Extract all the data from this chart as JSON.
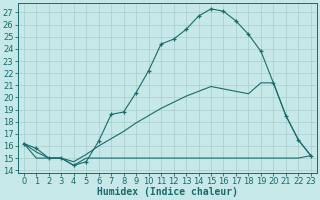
{
  "xlabel": "Humidex (Indice chaleur)",
  "xlim": [
    -0.5,
    23.5
  ],
  "ylim": [
    13.8,
    27.8
  ],
  "yticks": [
    14,
    15,
    16,
    17,
    18,
    19,
    20,
    21,
    22,
    23,
    24,
    25,
    26,
    27
  ],
  "xticks": [
    0,
    1,
    2,
    3,
    4,
    5,
    6,
    7,
    8,
    9,
    10,
    11,
    12,
    13,
    14,
    15,
    16,
    17,
    18,
    19,
    20,
    21,
    22,
    23
  ],
  "bg_color": "#c6e8e8",
  "line_color": "#1a6b6b",
  "grid_color": "#a8cccc",
  "curve1_x": [
    0,
    1,
    2,
    3,
    4,
    5,
    6,
    7,
    8,
    9,
    10,
    11,
    12,
    13,
    14,
    15,
    16,
    17,
    18,
    19,
    20,
    21,
    22,
    23
  ],
  "curve1_y": [
    16.2,
    15.8,
    15.0,
    15.0,
    14.4,
    14.7,
    16.4,
    18.6,
    18.8,
    20.4,
    22.2,
    24.4,
    24.8,
    25.6,
    26.7,
    27.3,
    27.1,
    26.3,
    25.2,
    23.8,
    21.2,
    18.5,
    16.5,
    15.2
  ],
  "curve2_x": [
    0,
    1,
    2,
    3,
    4,
    5,
    6,
    7,
    8,
    9,
    10,
    11,
    12,
    13,
    14,
    15,
    16,
    17,
    18,
    19,
    20,
    21,
    22,
    23
  ],
  "curve2_y": [
    16.2,
    15.0,
    15.0,
    15.0,
    14.4,
    15.0,
    15.0,
    15.0,
    15.0,
    15.0,
    15.0,
    15.0,
    15.0,
    15.0,
    15.0,
    15.0,
    15.0,
    15.0,
    15.0,
    15.0,
    15.0,
    15.0,
    15.0,
    15.2
  ],
  "curve3_x": [
    0,
    1,
    2,
    3,
    4,
    5,
    6,
    7,
    8,
    9,
    10,
    11,
    12,
    13,
    14,
    15,
    16,
    17,
    18,
    19,
    20,
    21,
    22,
    23
  ],
  "curve3_y": [
    16.2,
    15.5,
    15.0,
    15.0,
    14.7,
    15.3,
    16.0,
    16.6,
    17.2,
    17.9,
    18.5,
    19.1,
    19.6,
    20.1,
    20.5,
    20.9,
    20.7,
    20.5,
    20.3,
    21.2,
    21.2,
    18.5,
    16.5,
    15.2
  ],
  "font_size": 6
}
